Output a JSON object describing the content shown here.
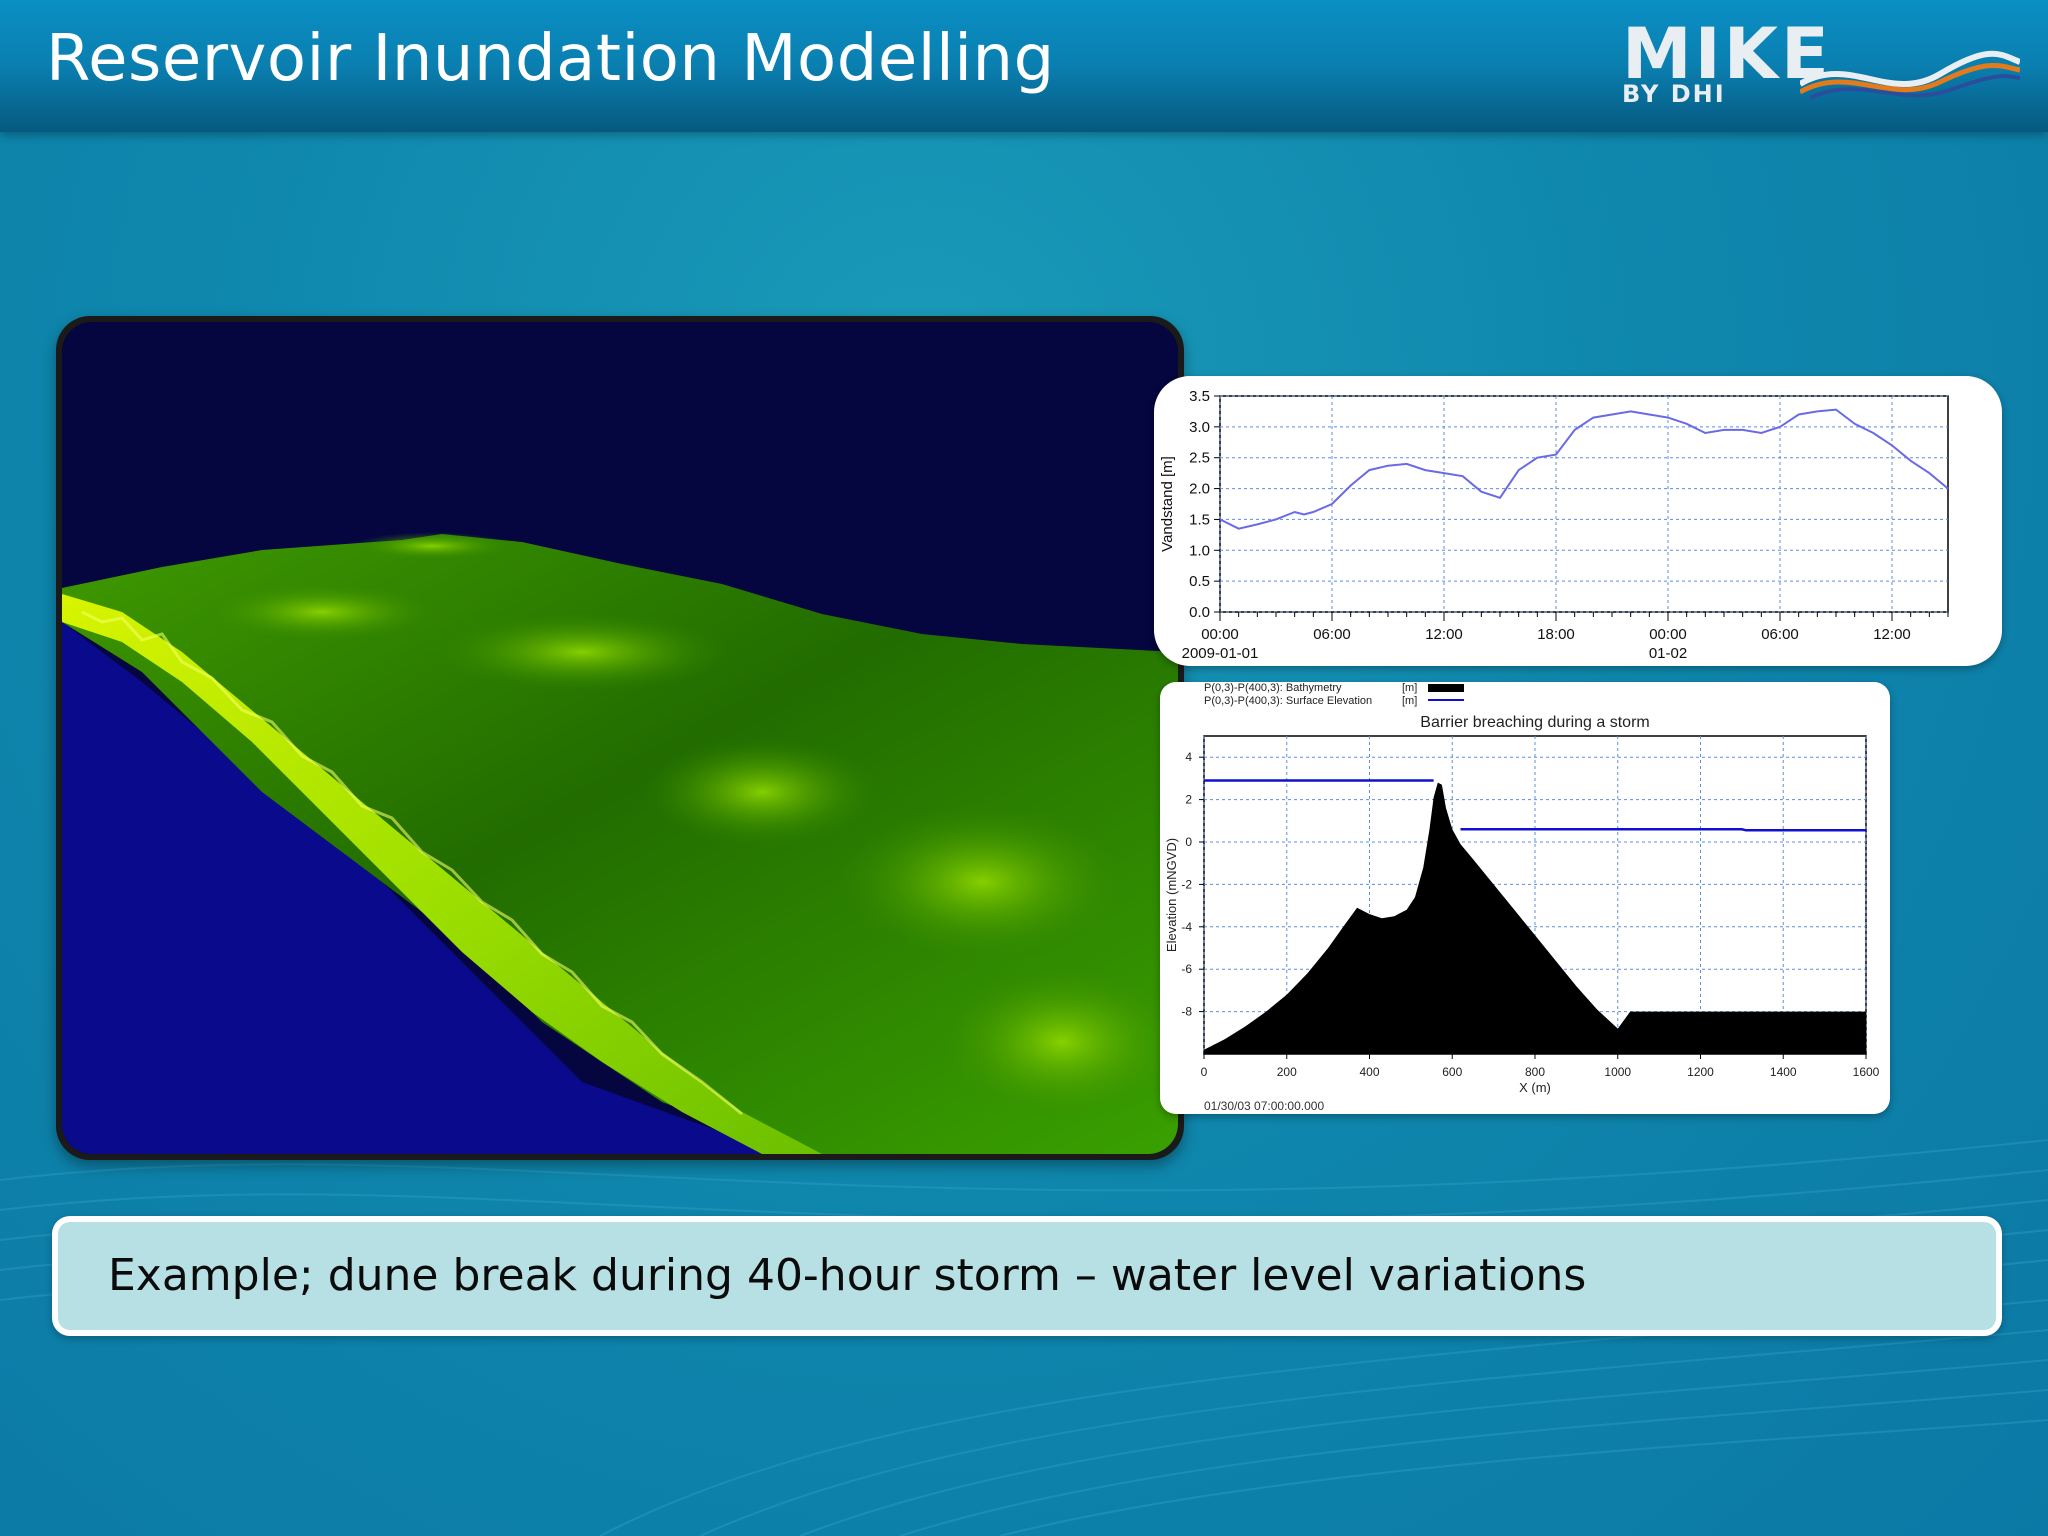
{
  "slide": {
    "title": "Reservoir Inundation Modelling",
    "caption": "Example; dune break during 40-hour storm – water level variations"
  },
  "logo": {
    "main": "MIKE",
    "sub": "BY DHI",
    "icon": "dhi-wave-logo-icon"
  },
  "colors": {
    "header": "#0a7fb0",
    "background": "#0f87ad",
    "caption_bg": "#b7e0e4",
    "sky": "#05053f",
    "sea": "#0a0a8c",
    "terrain_dark": "#1f6a00",
    "terrain_light": "#b8f000",
    "series_line": "#6a6ae6",
    "surface_line": "#1010d0",
    "bathymetry_fill": "#000000"
  },
  "chart_data": [
    {
      "type": "line",
      "title": "",
      "ylabel": "Vandstand [m]",
      "xlabel": "",
      "x_unit": "hours since 2009-01-01 00:00",
      "x_ticks": [
        {
          "x": 0,
          "label": "00:00",
          "sublabel": "2009-01-01"
        },
        {
          "x": 6,
          "label": "06:00",
          "sublabel": ""
        },
        {
          "x": 12,
          "label": "12:00",
          "sublabel": ""
        },
        {
          "x": 18,
          "label": "18:00",
          "sublabel": ""
        },
        {
          "x": 24,
          "label": "00:00",
          "sublabel": "01-02"
        },
        {
          "x": 30,
          "label": "06:00",
          "sublabel": ""
        },
        {
          "x": 36,
          "label": "12:00",
          "sublabel": ""
        }
      ],
      "y_ticks": [
        "0.0",
        "0.5",
        "1.0",
        "1.5",
        "2.0",
        "2.5",
        "3.0",
        "3.5"
      ],
      "xlim": [
        0,
        39
      ],
      "ylim": [
        0,
        3.5
      ],
      "grid": true,
      "series": [
        {
          "name": "",
          "x": [
            0,
            1,
            2,
            3,
            4,
            4.5,
            5,
            6,
            7,
            8,
            9,
            10,
            11,
            12,
            13,
            14,
            15,
            16,
            17,
            18,
            19,
            20,
            21,
            22,
            23,
            24,
            25,
            26,
            27,
            28,
            29,
            30,
            31,
            32,
            33,
            34,
            35,
            36,
            37,
            38,
            39
          ],
          "y": [
            1.5,
            1.35,
            1.42,
            1.5,
            1.62,
            1.58,
            1.62,
            1.75,
            2.05,
            2.3,
            2.37,
            2.4,
            2.3,
            2.25,
            2.2,
            1.95,
            1.85,
            2.3,
            2.5,
            2.55,
            2.95,
            3.15,
            3.2,
            3.25,
            3.2,
            3.15,
            3.05,
            2.9,
            2.95,
            2.95,
            2.9,
            3.0,
            3.2,
            3.25,
            3.28,
            3.05,
            2.9,
            2.7,
            2.45,
            2.25,
            2.0
          ]
        }
      ]
    },
    {
      "type": "area",
      "title": "Barrier breaching during a storm",
      "xlabel": "X (m)",
      "ylabel": "Elevation (mNGVD)",
      "xlim": [
        0,
        1600
      ],
      "ylim": [
        -10,
        5
      ],
      "x_ticks": [
        0,
        200,
        400,
        600,
        800,
        1000,
        1200,
        1400,
        1600
      ],
      "y_ticks": [
        4,
        2,
        0,
        -2,
        -4,
        -6,
        -8
      ],
      "grid": true,
      "timestamp": "01/30/03 07:00:00.000",
      "legend": [
        {
          "label": "P(0,3)-P(400,3): Bathymetry",
          "unit": "[m]"
        },
        {
          "label": "P(0,3)-P(400,3): Surface Elevation",
          "unit": "[m]"
        }
      ],
      "series": [
        {
          "name": "P(0,3)-P(400,3): Bathymetry",
          "x": [
            0,
            50,
            100,
            150,
            200,
            250,
            300,
            340,
            370,
            400,
            430,
            460,
            490,
            510,
            530,
            545,
            555,
            565,
            575,
            585,
            600,
            620,
            650,
            700,
            750,
            800,
            850,
            900,
            950,
            1000,
            1030,
            1100,
            1200,
            1300,
            1400,
            1500,
            1600
          ],
          "y": [
            -9.8,
            -9.3,
            -8.7,
            -8.0,
            -7.2,
            -6.2,
            -5.0,
            -3.9,
            -3.1,
            -3.4,
            -3.6,
            -3.5,
            -3.2,
            -2.6,
            -1.2,
            0.6,
            2.1,
            2.8,
            2.7,
            1.6,
            0.6,
            -0.1,
            -0.8,
            -2.0,
            -3.2,
            -4.4,
            -5.6,
            -6.8,
            -7.9,
            -8.8,
            -8.0,
            -8.0,
            -8.0,
            -8.0,
            -8.0,
            -8.0,
            -8.0
          ]
        },
        {
          "name": "P(0,3)-P(400,3): Surface Elevation",
          "segments": [
            {
              "x": [
                0,
                555
              ],
              "y": [
                2.9,
                2.9
              ]
            },
            {
              "x": [
                620,
                1300,
                1310,
                1600
              ],
              "y": [
                0.6,
                0.6,
                0.55,
                0.55
              ]
            }
          ]
        }
      ]
    }
  ]
}
